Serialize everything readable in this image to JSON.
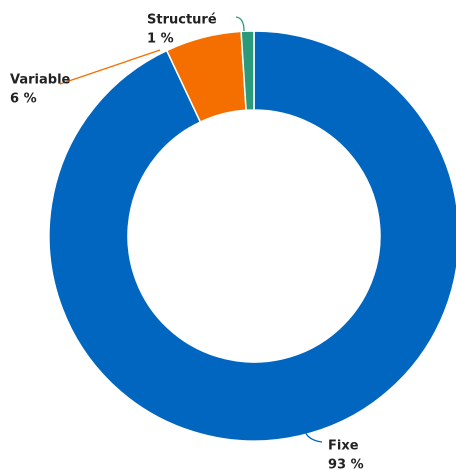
{
  "chart_data": {
    "type": "donut",
    "categories": [
      "Fixe",
      "Variable",
      "Structuré"
    ],
    "values": [
      93,
      6,
      1
    ],
    "value_labels": [
      "93 %",
      "6 %",
      "1 %"
    ],
    "colors": [
      "#0066c0",
      "#f46f00",
      "#2a9a7a"
    ]
  }
}
